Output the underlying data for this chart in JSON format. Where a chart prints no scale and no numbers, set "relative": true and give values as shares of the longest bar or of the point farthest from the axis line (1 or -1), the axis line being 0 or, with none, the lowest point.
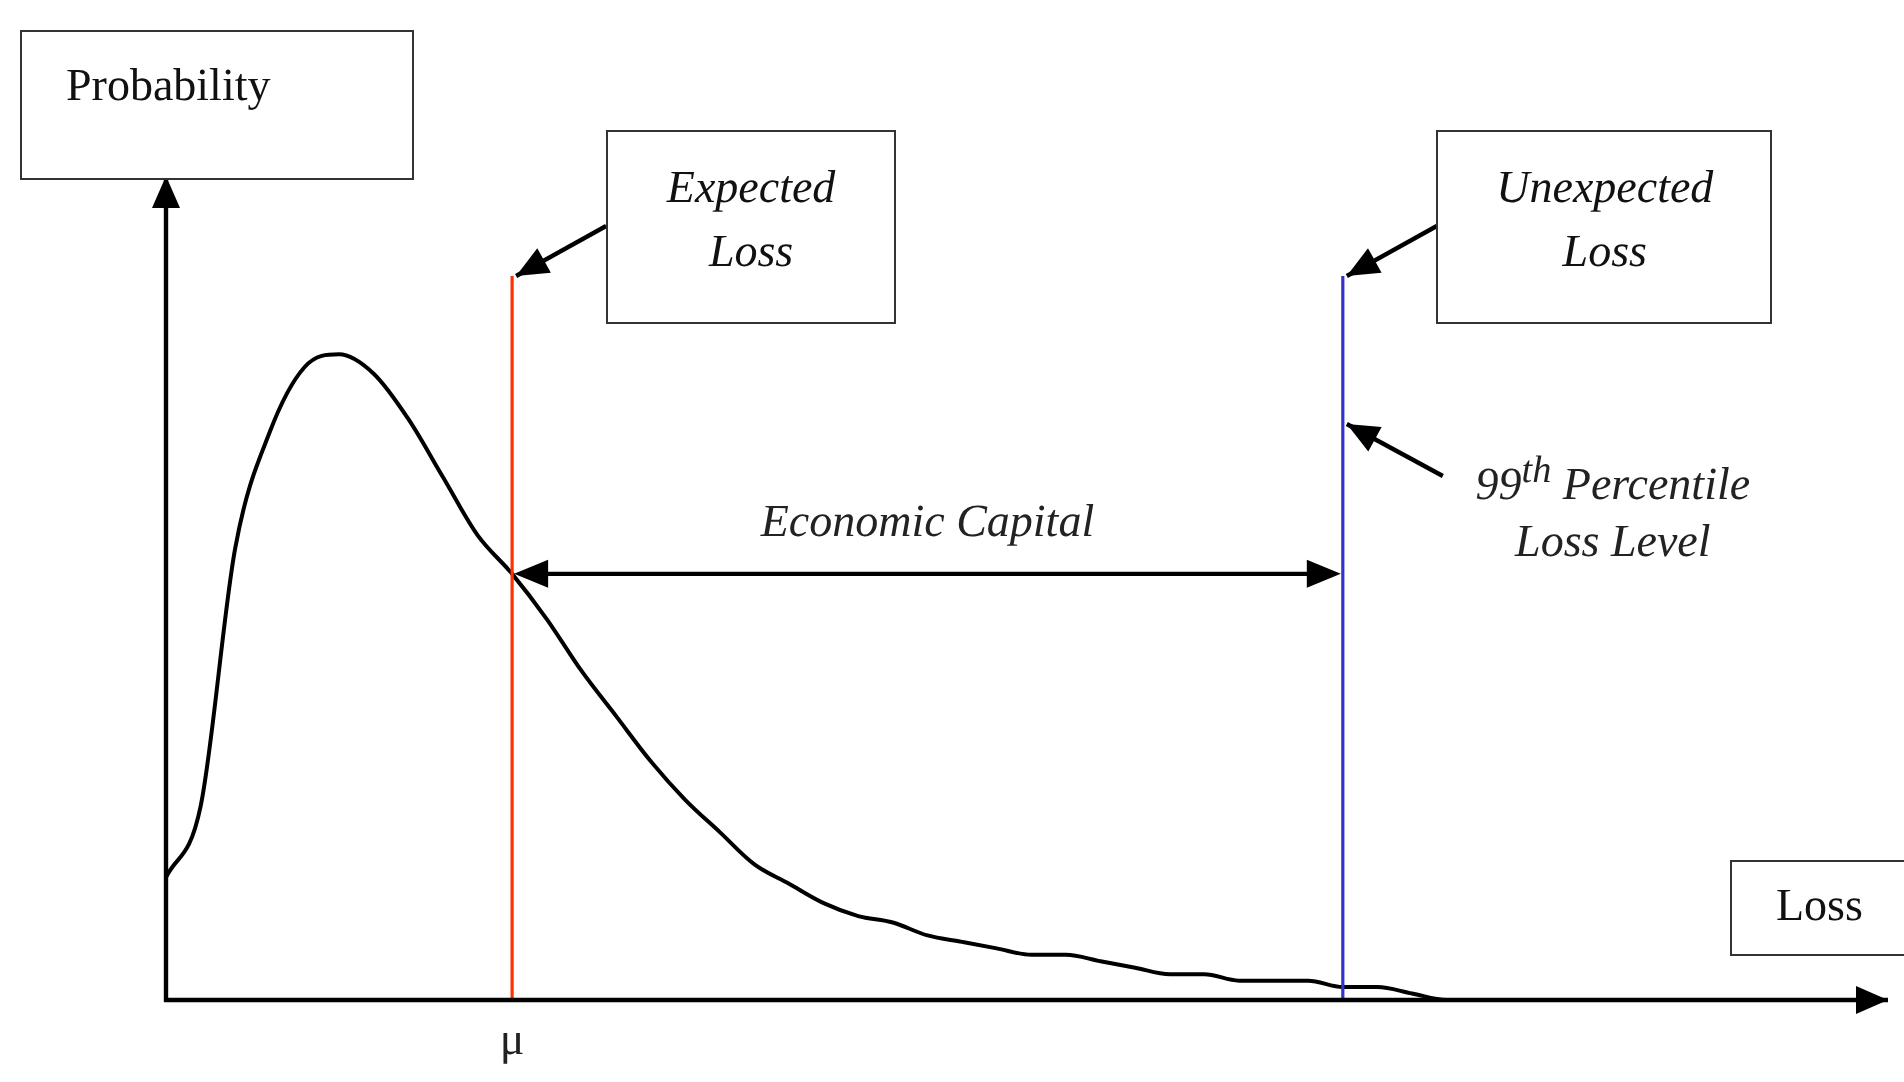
{
  "chart_data": {
    "type": "line",
    "relative": true,
    "xlabel": "Loss",
    "categories": [
      null,
      null,
      null,
      null,
      null,
      null,
      null,
      null,
      null,
      null,
      null,
      null,
      null,
      null,
      null,
      null,
      null,
      null,
      null,
      null,
      null,
      null,
      null,
      null,
      null,
      null,
      null,
      null,
      null,
      null,
      null,
      null,
      null,
      null,
      null,
      null,
      null,
      null,
      null,
      null,
      null,
      null,
      null,
      null,
      null,
      null,
      null,
      null,
      null,
      null
    ],
    "series": [
      {
        "color": "#000000",
        "values": [
          0.19,
          0.3,
          0.7,
          0.88,
          0.98,
          1,
          0.97,
          0.9,
          0.81,
          0.72,
          0.66,
          0.59,
          0.51,
          0.44,
          0.37,
          0.31,
          0.26,
          0.21,
          0.18,
          0.15,
          0.13,
          0.12,
          0.1,
          0.09,
          0.08,
          0.07,
          0.07,
          0.06,
          0.05,
          0.04,
          0.04,
          0.03,
          0.03,
          0.03,
          0.02,
          0.02,
          0.01,
          0,
          0,
          null,
          null,
          null,
          null,
          null,
          null,
          null,
          null,
          null,
          null,
          null
        ]
      }
    ],
    "marker": "none",
    "legend": false,
    "annotations": [
      "μ",
      "Probability",
      "Expected Loss",
      "Unexpected Loss",
      "Economic Capital",
      "99$^{th}$ Percentile Loss Level"
    ]
  }
}
